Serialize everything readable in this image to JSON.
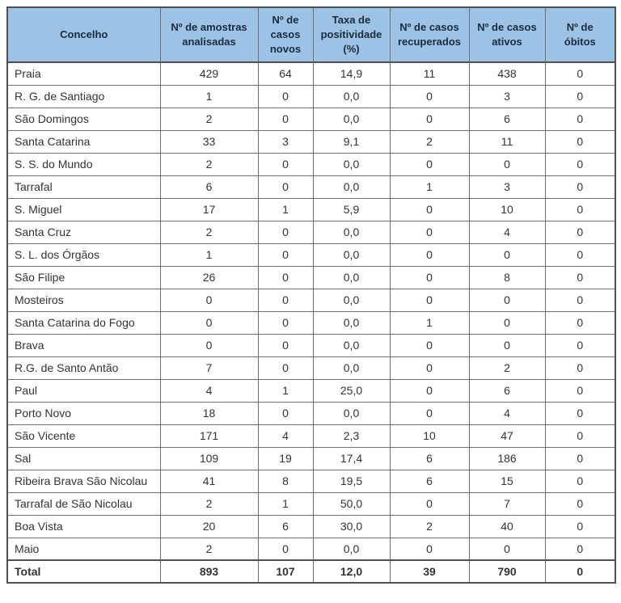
{
  "table": {
    "title_semantic": "covid-statistics-by-municipality",
    "columns": [
      "Concelho",
      "Nº de amostras analisadas",
      "Nº de casos novos",
      "Taxa de positividade (%)",
      "Nº de casos recuperados",
      "Nº de casos ativos",
      "Nº de óbitos"
    ],
    "rows": [
      [
        "Praia",
        "429",
        "64",
        "14,9",
        "11",
        "438",
        "0"
      ],
      [
        "R. G. de Santiago",
        "1",
        "0",
        "0,0",
        "0",
        "3",
        "0"
      ],
      [
        "São Domingos",
        "2",
        "0",
        "0,0",
        "0",
        "6",
        "0"
      ],
      [
        "Santa Catarina",
        "33",
        "3",
        "9,1",
        "2",
        "11",
        "0"
      ],
      [
        "S. S. do Mundo",
        "2",
        "0",
        "0,0",
        "0",
        "0",
        "0"
      ],
      [
        "Tarrafal",
        "6",
        "0",
        "0,0",
        "1",
        "3",
        "0"
      ],
      [
        "S. Miguel",
        "17",
        "1",
        "5,9",
        "0",
        "10",
        "0"
      ],
      [
        "Santa Cruz",
        "2",
        "0",
        "0,0",
        "0",
        "4",
        "0"
      ],
      [
        "S. L. dos Órgãos",
        "1",
        "0",
        "0,0",
        "0",
        "0",
        "0"
      ],
      [
        "São Filipe",
        "26",
        "0",
        "0,0",
        "0",
        "8",
        "0"
      ],
      [
        "Mosteiros",
        "0",
        "0",
        "0,0",
        "0",
        "0",
        "0"
      ],
      [
        "Santa Catarina do Fogo",
        "0",
        "0",
        "0,0",
        "1",
        "0",
        "0"
      ],
      [
        "Brava",
        "0",
        "0",
        "0,0",
        "0",
        "0",
        "0"
      ],
      [
        "R.G. de Santo Antão",
        "7",
        "0",
        "0,0",
        "0",
        "2",
        "0"
      ],
      [
        "Paul",
        "4",
        "1",
        "25,0",
        "0",
        "6",
        "0"
      ],
      [
        "Porto Novo",
        "18",
        "0",
        "0,0",
        "0",
        "4",
        "0"
      ],
      [
        "São Vicente",
        "171",
        "4",
        "2,3",
        "10",
        "47",
        "0"
      ],
      [
        "Sal",
        "109",
        "19",
        "17,4",
        "6",
        "186",
        "0"
      ],
      [
        "Ribeira Brava São Nicolau",
        "41",
        "8",
        "19,5",
        "6",
        "15",
        "0"
      ],
      [
        "Tarrafal de São Nicolau",
        "2",
        "1",
        "50,0",
        "0",
        "7",
        "0"
      ],
      [
        "Boa Vista",
        "20",
        "6",
        "30,0",
        "2",
        "40",
        "0"
      ],
      [
        "Maio",
        "2",
        "0",
        "0,0",
        "0",
        "0",
        "0"
      ]
    ],
    "total_row": [
      "Total",
      "893",
      "107",
      "12,0",
      "39",
      "790",
      "0"
    ],
    "colors": {
      "header_bg": "#9CC3E5",
      "header_text": "#1B2A3B",
      "body_text": "#333333",
      "border": "#6E6E6E",
      "border_dark": "#4F4F4F"
    }
  }
}
